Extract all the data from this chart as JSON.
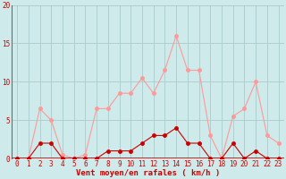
{
  "x": [
    0,
    1,
    2,
    3,
    4,
    5,
    6,
    7,
    8,
    9,
    10,
    11,
    12,
    13,
    14,
    15,
    16,
    17,
    18,
    19,
    20,
    21,
    22,
    23
  ],
  "wind_avg": [
    0,
    0,
    2,
    2,
    0,
    0,
    0,
    0,
    1,
    1,
    1,
    2,
    3,
    3,
    4,
    2,
    2,
    0,
    0,
    2,
    0,
    1,
    0,
    0
  ],
  "wind_gust": [
    0,
    0,
    6.5,
    5,
    0.5,
    0,
    0.5,
    6.5,
    6.5,
    8.5,
    8.5,
    10.5,
    8.5,
    11.5,
    16,
    11.5,
    11.5,
    3,
    0,
    5.5,
    6.5,
    10,
    3,
    2
  ],
  "xlabel": "Vent moyen/en rafales ( km/h )",
  "ylim": [
    0,
    20
  ],
  "yticks": [
    0,
    5,
    10,
    15,
    20
  ],
  "bg_color": "#ceeaea",
  "grid_color": "#aacccc",
  "line_avg_color": "#cc0000",
  "line_gust_color": "#ff9999",
  "marker_size": 2.5,
  "line_width": 0.8,
  "tick_fontsize": 5.5,
  "xlabel_fontsize": 6.5
}
